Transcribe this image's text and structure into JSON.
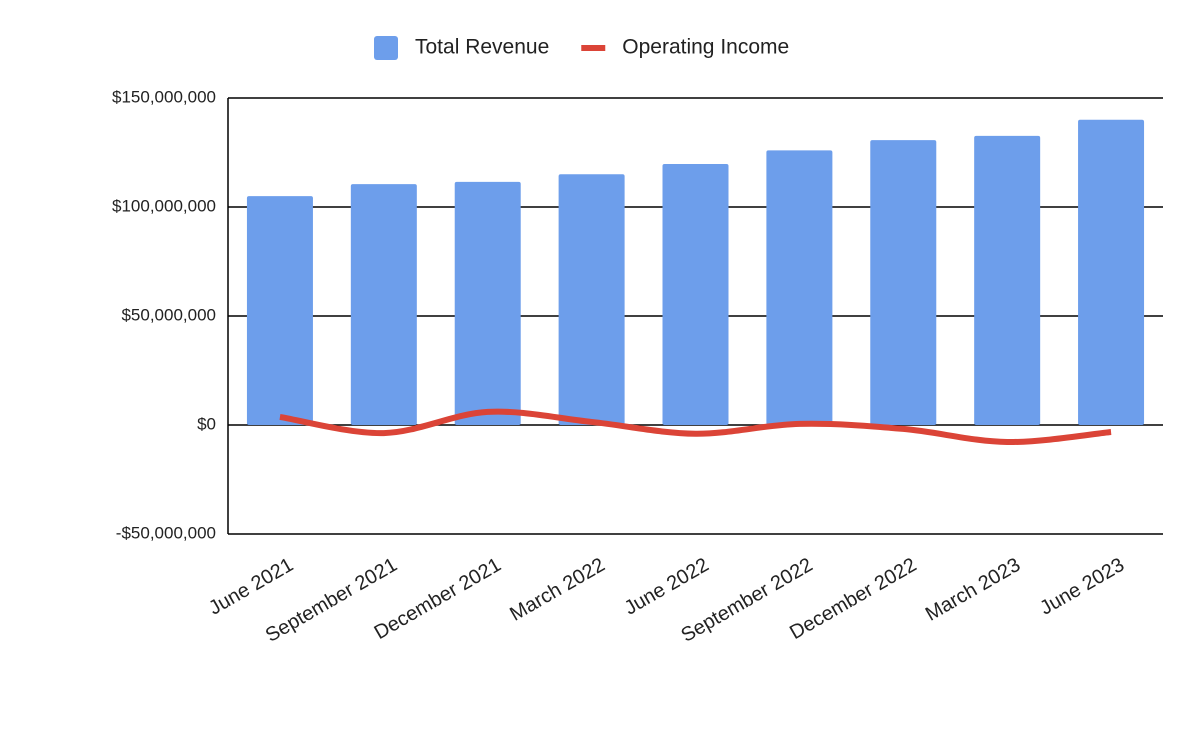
{
  "chart_data": {
    "type": "combo",
    "categories": [
      "June 2021",
      "September 2021",
      "December 2021",
      "March 2022",
      "June 2022",
      "September 2022",
      "December 2022",
      "March 2023",
      "June 2023"
    ],
    "series": [
      {
        "name": "Total Revenue",
        "type": "bar",
        "color": "#6d9eeb",
        "values": [
          105000000,
          110500000,
          111500000,
          115000000,
          119700000,
          126000000,
          130700000,
          132600000,
          140000000
        ]
      },
      {
        "name": "Operating Income",
        "type": "line",
        "color": "#db4437",
        "smooth": true,
        "values": [
          3700000,
          -3700000,
          6000000,
          1400000,
          -4000000,
          500000,
          -1800000,
          -7800000,
          -3200000
        ]
      }
    ],
    "ylim": [
      -50000000,
      150000000
    ],
    "yticks": [
      {
        "value": -50000000,
        "label": "-$50,000,000"
      },
      {
        "value": 0,
        "label": "$0"
      },
      {
        "value": 50000000,
        "label": "$50,000,000"
      },
      {
        "value": 100000000,
        "label": "$100,000,000"
      },
      {
        "value": 150000000,
        "label": "$150,000,000"
      }
    ],
    "grid": true,
    "legend": "top"
  }
}
